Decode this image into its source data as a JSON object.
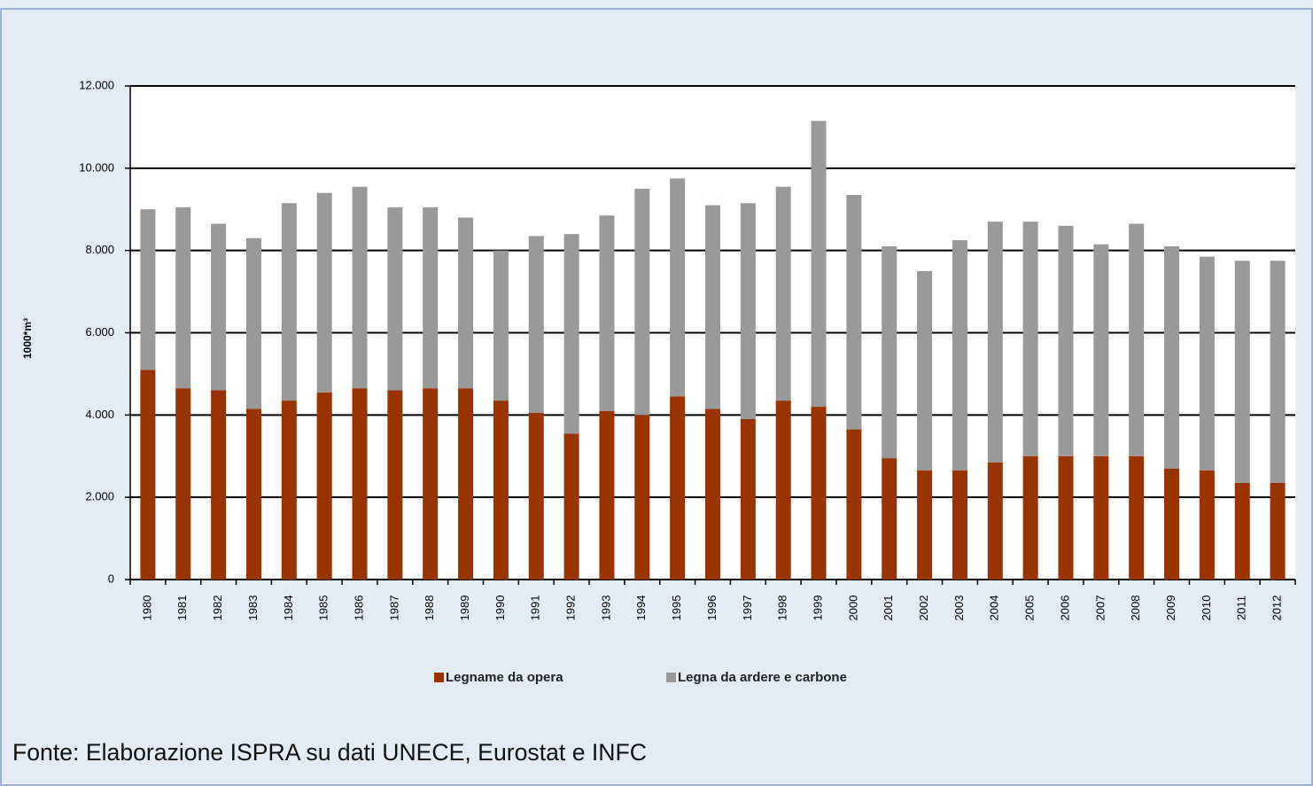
{
  "chart_data": {
    "type": "stacked_bar",
    "y_label": "1000*m³",
    "source": "Fonte:  Elaborazione ISPRA su dati UNECE, Eurostat e INFC",
    "categories": [
      "1980",
      "1981",
      "1982",
      "1983",
      "1984",
      "1985",
      "1986",
      "1987",
      "1988",
      "1989",
      "1990",
      "1991",
      "1992",
      "1993",
      "1994",
      "1995",
      "1996",
      "1997",
      "1998",
      "1999",
      "2000",
      "2001",
      "2002",
      "2003",
      "2004",
      "2005",
      "2006",
      "2007",
      "2008",
      "2009",
      "2010",
      "2011",
      "2012"
    ],
    "series": [
      {
        "name": "Legname da opera",
        "color": "#993300",
        "values": [
          5100,
          4650,
          4600,
          4150,
          4350,
          4550,
          4650,
          4600,
          4650,
          4650,
          4350,
          4050,
          3550,
          4100,
          4000,
          4450,
          4150,
          3900,
          4350,
          4200,
          3650,
          2950,
          2650,
          2650,
          2850,
          3000,
          3000,
          3000,
          3000,
          2700,
          2650,
          2350,
          2350
        ]
      },
      {
        "name": "Legna da ardere e carbone",
        "color": "#999999",
        "values": [
          3900,
          4400,
          4050,
          4150,
          4800,
          4850,
          4900,
          4450,
          4400,
          4150,
          3650,
          4300,
          4850,
          4750,
          5500,
          5300,
          4950,
          5250,
          5200,
          6950,
          5700,
          5150,
          4850,
          5600,
          5850,
          5700,
          5600,
          5150,
          5650,
          5400,
          5200,
          5400,
          5400
        ]
      }
    ],
    "ylim": [
      0,
      12000
    ],
    "yticks": [
      0,
      {
        "value": 2000,
        "label": "2.000"
      },
      {
        "value": 4000,
        "label": "4.000"
      },
      {
        "value": 6000,
        "label": "6.000"
      },
      {
        "value": 8000,
        "label": "8.000"
      },
      {
        "value": 10000,
        "label": "10.000"
      },
      {
        "value": 12000,
        "label": "12.000"
      }
    ],
    "grid": true,
    "legend": "bottom"
  }
}
